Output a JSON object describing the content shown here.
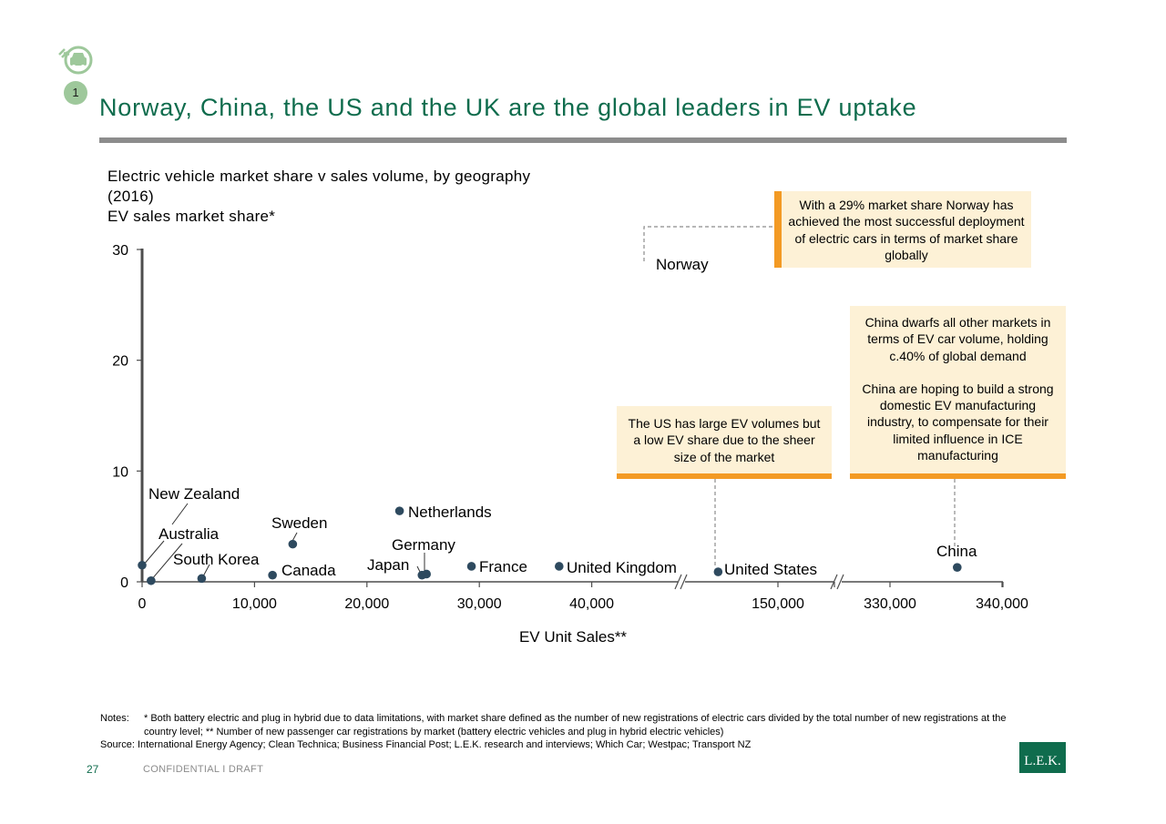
{
  "header": {
    "section_badge": "1",
    "title": "Norway, China, the US and the UK are the global leaders in EV uptake",
    "icon": "electric-car-plug-icon"
  },
  "chart_header": {
    "title_line1": "Electric vehicle market share v sales volume, by geography",
    "title_line2": "(2016)",
    "y_axis_label": "EV sales market share*"
  },
  "chart_data": {
    "type": "scatter",
    "title": "Electric vehicle market share v sales volume, by geography (2016)",
    "xlabel": "EV Unit Sales**",
    "ylabel": "EV sales market share*",
    "ylim": [
      0,
      30
    ],
    "y_ticks": [
      "0",
      "10",
      "20",
      "30"
    ],
    "x_ticks": [
      "0",
      "10,000",
      "20,000",
      "30,000",
      "40,000",
      "150,000",
      "330,000",
      "340,000"
    ],
    "x_axis_breaks": [
      "between 40,000 and 150,000",
      "between 150,000 and 330,000"
    ],
    "points": [
      {
        "label": "New Zealand",
        "x": 0,
        "y": 1.5
      },
      {
        "label": "Australia",
        "x": 800,
        "y": 0.1
      },
      {
        "label": "South Korea",
        "x": 5300,
        "y": 0.3
      },
      {
        "label": "Canada",
        "x": 11600,
        "y": 0.6
      },
      {
        "label": "Sweden",
        "x": 13400,
        "y": 3.4
      },
      {
        "label": "Netherlands",
        "x": 22900,
        "y": 6.4
      },
      {
        "label": "Japan",
        "x": 24900,
        "y": 0.6
      },
      {
        "label": "Germany",
        "x": 25300,
        "y": 0.7
      },
      {
        "label": "France",
        "x": 29300,
        "y": 1.4
      },
      {
        "label": "United Kingdom",
        "x": 37100,
        "y": 1.4
      },
      {
        "label": "Norway",
        "x": 45300,
        "y": 28.8
      },
      {
        "label": "United States",
        "x": 143300,
        "y": 0.9
      },
      {
        "label": "China",
        "x": 336000,
        "y": 1.3
      }
    ],
    "grid": false,
    "legend": "none",
    "marker_color": "#2e4a5f"
  },
  "callouts": {
    "norway": "With a 29% market share Norway has achieved the most successful deployment of electric cars in terms of market share globally",
    "us": "The US has large EV volumes but a low EV share due to the sheer size of the market",
    "china_p1": "China dwarfs all other markets in terms of EV car volume, holding c.40% of global demand",
    "china_p2": "China are hoping to build a strong domestic EV manufacturing industry, to compensate for their limited influence in ICE manufacturing"
  },
  "footer": {
    "notes_label": "Notes:",
    "notes_text": "* Both battery electric and plug in hybrid due to data limitations, with market share defined as the number of new registrations of electric cars divided by the total number of new registrations at the country level; ** Number of new passenger car registrations by market (battery electric vehicles and plug in hybrid electric vehicles)",
    "source_text": "Source: International Energy Agency; Clean Technica; Business Financial Post; L.E.K. research and interviews; Which Car; Westpac; Transport NZ",
    "page_number": "27",
    "confidential": "CONFIDENTIAL I  DRAFT",
    "logo": "L.E.K."
  },
  "colors": {
    "brand_green": "#0f6c4d",
    "accent_orange": "#f39a24",
    "callout_fill": "#fdf1d6",
    "marker": "#2e4a5f",
    "rule_gray": "#8c8c8c"
  }
}
